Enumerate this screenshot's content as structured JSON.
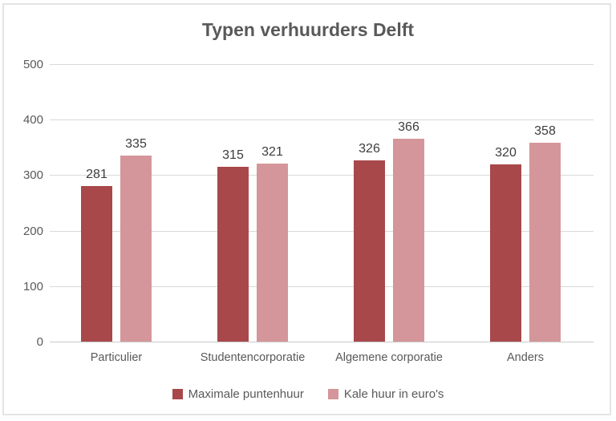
{
  "chart_data": {
    "type": "bar",
    "title": "Typen verhuurders Delft",
    "categories": [
      "Particulier",
      "Studentencorporatie",
      "Algemene corporatie",
      "Anders"
    ],
    "series": [
      {
        "name": "Maximale puntenhuur",
        "color": "#a8484a",
        "values": [
          281,
          315,
          326,
          320
        ]
      },
      {
        "name": "Kale huur in euro's",
        "color": "#d4969a",
        "values": [
          335,
          321,
          366,
          358
        ]
      }
    ],
    "xlabel": "",
    "ylabel": "",
    "ylim": [
      0,
      500
    ],
    "yticks": [
      0,
      100,
      200,
      300,
      400,
      500
    ],
    "grid": true,
    "legend_position": "bottom"
  },
  "colors": {
    "title_text": "#595959",
    "axis_text": "#595959",
    "data_label_text": "#3d3d3d",
    "gridline": "#d9d9d9",
    "frame_border": "#e4e4e4",
    "background": "#ffffff"
  }
}
